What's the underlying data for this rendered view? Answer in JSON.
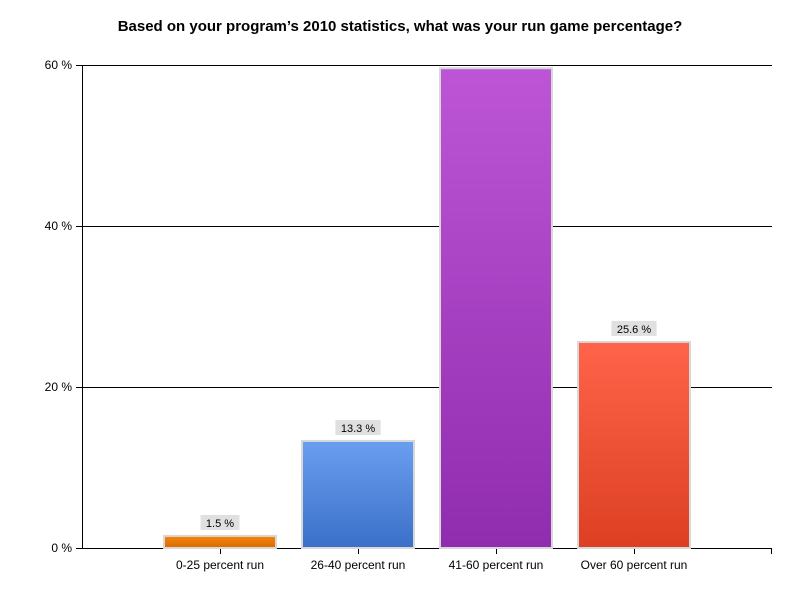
{
  "chart_data": {
    "type": "bar",
    "title": "Based on your program’s 2010 statistics, what was your run game percentage?",
    "xlabel": "",
    "ylabel": "",
    "ylim": [
      0,
      60
    ],
    "yticks": [
      0,
      20,
      40,
      60
    ],
    "ytick_labels": [
      "0 %",
      "20 %",
      "40 %",
      "60 %"
    ],
    "grid": true,
    "categories": [
      "0-25 percent run",
      "26-40 percent run",
      "41-60 percent run",
      "Over 60 percent run"
    ],
    "values": [
      1.5,
      13.3,
      59.6,
      25.6
    ],
    "data_labels": [
      "1.5 %",
      "13.3 %",
      "",
      "25.6 %"
    ],
    "colors": [
      [
        "#f5850e",
        "#d96a00"
      ],
      [
        "#6a9ef0",
        "#3a70c8"
      ],
      [
        "#bd55d6",
        "#902cae"
      ],
      [
        "#ff644a",
        "#dc3f22"
      ]
    ]
  }
}
